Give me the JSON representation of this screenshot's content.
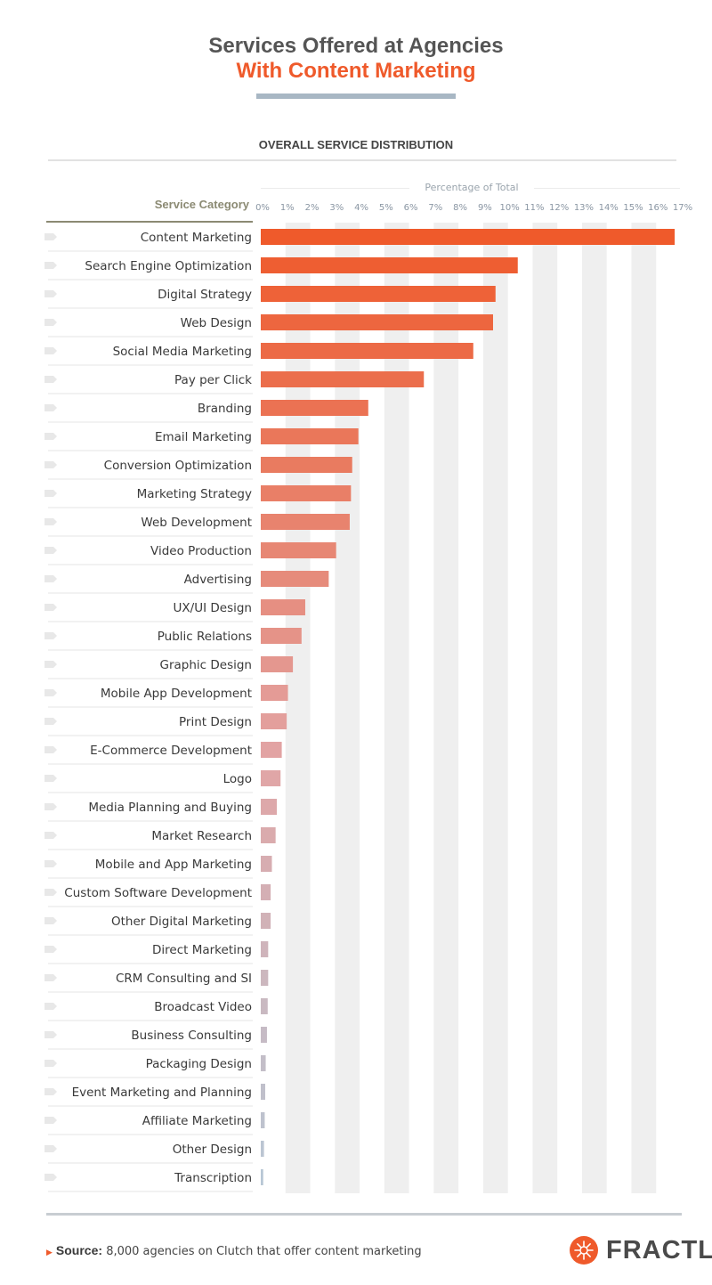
{
  "title_line1": "Services Offered at Agencies",
  "title_line2": "With Content Marketing",
  "subtitle": "OVERALL SERVICE DISTRIBUTION",
  "source_label": "Source:",
  "source_text": "8,000 agencies on Clutch that offer content marketing",
  "logo_text": "FRACTL",
  "colors": {
    "accent": "#ef5a2b",
    "title_gray": "#555555",
    "header_olive": "#8b8a73",
    "stripe": "#efefef",
    "bar_end": "#b8c7d5"
  },
  "chart_data": {
    "type": "bar",
    "orientation": "horizontal",
    "category_header": "Service Category",
    "xlabel": "Percentage of Total",
    "xlim": [
      0,
      17
    ],
    "ticks": [
      "0%",
      "1%",
      "2%",
      "3%",
      "4%",
      "5%",
      "6%",
      "7%",
      "8%",
      "9%",
      "10%",
      "11%",
      "12%",
      "13%",
      "14%",
      "15%",
      "16%",
      "17%"
    ],
    "grid": "alternating vertical stripes",
    "categories": [
      "Content Marketing",
      "Search Engine Optimization",
      "Digital Strategy",
      "Web Design",
      "Social Media Marketing",
      "Pay per Click",
      "Branding",
      "Email Marketing",
      "Conversion Optimization",
      "Marketing Strategy",
      "Web Development",
      "Video Production",
      "Advertising",
      "UX/UI Design",
      "Public Relations",
      "Graphic Design",
      "Mobile App Development",
      "Print Design",
      "E-Commerce Development",
      "Logo",
      "Media Planning and Buying",
      "Market Research",
      "Mobile and App Marketing",
      "Custom Software Development",
      "Other Digital Marketing",
      "Direct Marketing",
      "CRM Consulting and SI",
      "Broadcast Video",
      "Business Consulting",
      "Packaging Design",
      "Event Marketing and Planning",
      "Affiliate Marketing",
      "Other Design",
      "Transcription"
    ],
    "values": [
      16.75,
      10.4,
      9.5,
      9.4,
      8.6,
      6.6,
      4.35,
      3.95,
      3.7,
      3.65,
      3.6,
      3.05,
      2.75,
      1.8,
      1.65,
      1.3,
      1.1,
      1.05,
      0.85,
      0.8,
      0.65,
      0.6,
      0.45,
      0.4,
      0.4,
      0.3,
      0.3,
      0.28,
      0.25,
      0.2,
      0.18,
      0.16,
      0.13,
      0.1
    ]
  }
}
